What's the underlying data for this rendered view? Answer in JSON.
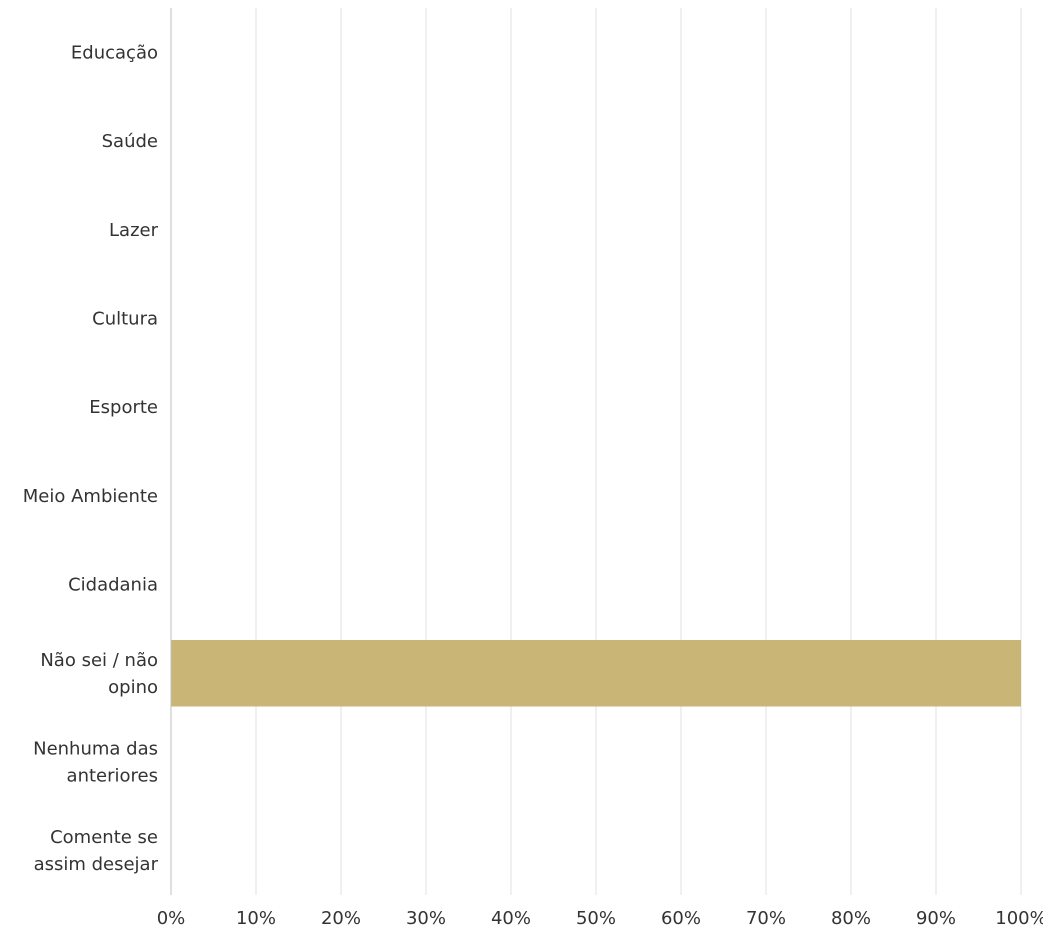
{
  "chart_data": {
    "type": "bar",
    "orientation": "horizontal",
    "categories": [
      [
        "Educação"
      ],
      [
        "Saúde"
      ],
      [
        "Lazer"
      ],
      [
        "Cultura"
      ],
      [
        "Esporte"
      ],
      [
        "Meio Ambiente"
      ],
      [
        "Cidadania"
      ],
      [
        "Não sei / não",
        "opino"
      ],
      [
        "Nenhuma das",
        "anteriores"
      ],
      [
        "Comente se",
        "assim desejar"
      ]
    ],
    "values": [
      0,
      0,
      0,
      0,
      0,
      0,
      0,
      100,
      0,
      0
    ],
    "value_unit": "%",
    "xlim": [
      0,
      100
    ],
    "ticks": [
      "0%",
      "10%",
      "20%",
      "30%",
      "40%",
      "50%",
      "60%",
      "70%",
      "80%",
      "90%",
      "100%"
    ],
    "grid": true,
    "title": "",
    "xlabel": "",
    "ylabel": "",
    "colors": {
      "bar": "#c9b677",
      "grid": "#e1e1e1",
      "axis": "#bfbfbf",
      "text": "#333333"
    }
  }
}
